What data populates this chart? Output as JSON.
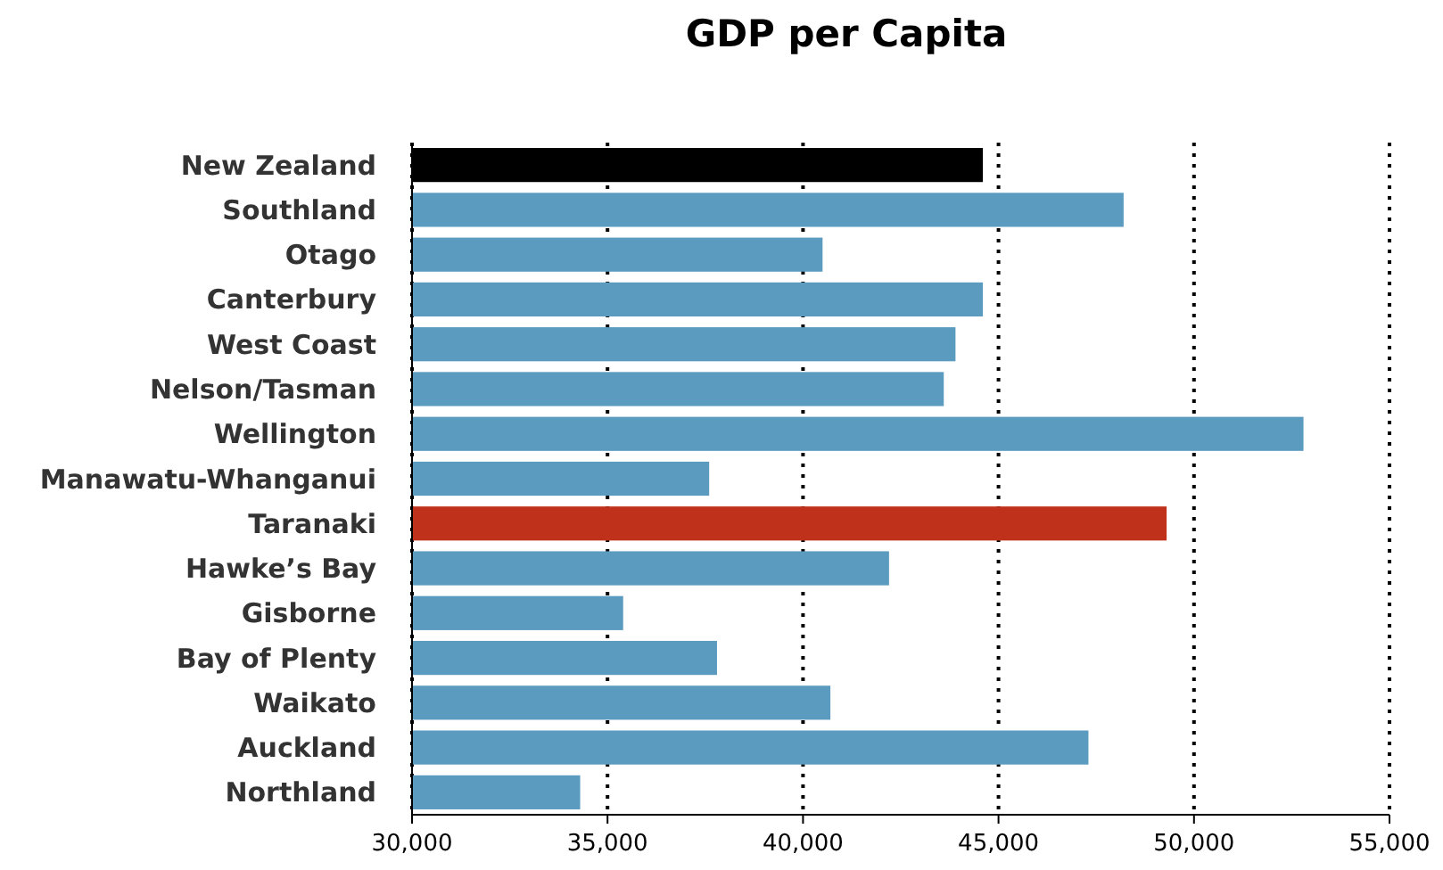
{
  "chart_data": {
    "type": "bar",
    "orientation": "horizontal",
    "title": "GDP per Capita",
    "categories": [
      "New Zealand",
      "Southland",
      "Otago",
      "Canterbury",
      "West Coast",
      "Nelson/Tasman",
      "Wellington",
      "Manawatu-Whanganui",
      "Taranaki",
      "Hawke’s Bay",
      "Gisborne",
      "Bay of Plenty",
      "Waikato",
      "Auckland",
      "Northland"
    ],
    "values": [
      44600,
      48200,
      40500,
      44600,
      43900,
      43600,
      52800,
      37600,
      49300,
      42200,
      35400,
      37800,
      40700,
      47300,
      34300
    ],
    "colors": [
      "#000000",
      "#5b9bbf",
      "#5b9bbf",
      "#5b9bbf",
      "#5b9bbf",
      "#5b9bbf",
      "#5b9bbf",
      "#5b9bbf",
      "#c0311b",
      "#5b9bbf",
      "#5b9bbf",
      "#5b9bbf",
      "#5b9bbf",
      "#5b9bbf",
      "#5b9bbf"
    ],
    "xlim": [
      30000,
      55000
    ],
    "xticks": [
      {
        "value": 30000,
        "label": "30,000"
      },
      {
        "value": 35000,
        "label": "35,000"
      },
      {
        "value": 40000,
        "label": "40,000"
      },
      {
        "value": 45000,
        "label": "45,000"
      },
      {
        "value": 50000,
        "label": "50,000"
      },
      {
        "value": 55000,
        "label": "55,000"
      }
    ],
    "grid": "x"
  }
}
